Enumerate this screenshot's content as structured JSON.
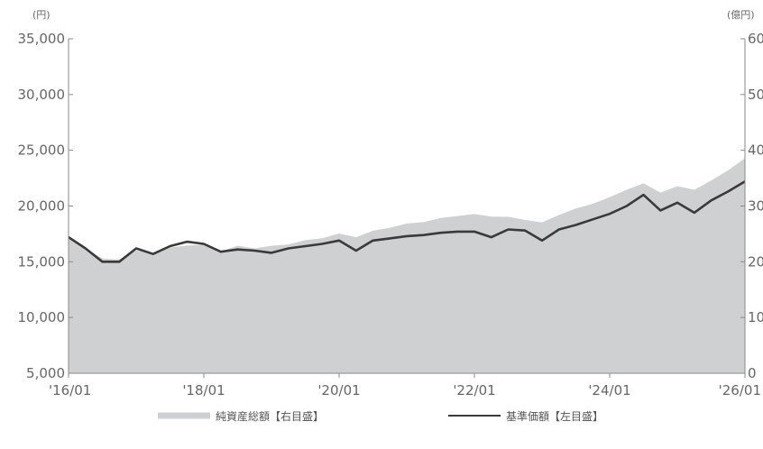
{
  "chart_data": {
    "type": "area+line",
    "title": "",
    "x_labels": [
      "'16/01",
      "'18/01",
      "'20/01",
      "'22/01",
      "'24/01",
      "'26/01"
    ],
    "x_range": [
      "2016-01",
      "2026-01"
    ],
    "left_axis": {
      "unit": "(円)",
      "ylim": [
        5000,
        35000
      ],
      "ticks": [
        "5,000",
        "10,000",
        "15,000",
        "20,000",
        "25,000",
        "30,000",
        "35,000"
      ],
      "tick_values": [
        5000,
        10000,
        15000,
        20000,
        25000,
        30000,
        35000
      ]
    },
    "right_axis": {
      "unit": "(億円)",
      "ylim": [
        0,
        60
      ],
      "ticks": [
        "0",
        "10",
        "20",
        "30",
        "40",
        "50",
        "60"
      ],
      "tick_values": [
        0,
        10,
        20,
        30,
        40,
        50,
        60
      ]
    },
    "legend": {
      "placement": "bottom",
      "entries": [
        "純資産総額【右目盛】",
        "基準価額【左目盛】"
      ]
    },
    "colors": {
      "area": "#cfd0d2",
      "line": "#3a3a3a",
      "axis": "#8a8a8a",
      "text": "#666666"
    },
    "series": [
      {
        "name": "純資産総額【右目盛】",
        "axis": "right",
        "kind": "area",
        "x": [
          "2016-01",
          "2016-04",
          "2016-07",
          "2016-10",
          "2017-01",
          "2017-04",
          "2017-07",
          "2017-10",
          "2018-01",
          "2018-04",
          "2018-07",
          "2018-10",
          "2019-01",
          "2019-04",
          "2019-07",
          "2019-10",
          "2020-01",
          "2020-04",
          "2020-07",
          "2020-10",
          "2021-01",
          "2021-04",
          "2021-07",
          "2021-10",
          "2022-01",
          "2022-04",
          "2022-07",
          "2022-10",
          "2023-01",
          "2023-04",
          "2023-07",
          "2023-10",
          "2024-01",
          "2024-04",
          "2024-07",
          "2024-10",
          "2025-01",
          "2025-04",
          "2025-07",
          "2025-10",
          "2026-01"
        ],
        "values": [
          24.5,
          22.5,
          20.5,
          20.5,
          22.0,
          21.5,
          22.5,
          23.0,
          23.0,
          22.0,
          22.8,
          22.5,
          22.8,
          23.2,
          23.8,
          24.3,
          25.0,
          24.5,
          25.5,
          26.2,
          26.8,
          27.2,
          27.8,
          28.3,
          28.5,
          28.2,
          28.0,
          27.6,
          27.0,
          28.5,
          29.5,
          30.5,
          31.5,
          33.0,
          34.0,
          32.5,
          33.5,
          33.0,
          34.5,
          36.5,
          38.5
        ]
      },
      {
        "name": "基準価額【左目盛】",
        "axis": "left",
        "kind": "line",
        "x": [
          "2016-01",
          "2016-04",
          "2016-07",
          "2016-10",
          "2017-01",
          "2017-04",
          "2017-07",
          "2017-10",
          "2018-01",
          "2018-04",
          "2018-07",
          "2018-10",
          "2019-01",
          "2019-04",
          "2019-07",
          "2019-10",
          "2020-01",
          "2020-04",
          "2020-07",
          "2020-10",
          "2021-01",
          "2021-04",
          "2021-07",
          "2021-10",
          "2022-01",
          "2022-04",
          "2022-07",
          "2022-10",
          "2023-01",
          "2023-04",
          "2023-07",
          "2023-10",
          "2024-01",
          "2024-04",
          "2024-07",
          "2024-10",
          "2025-01",
          "2025-04",
          "2025-07",
          "2025-10",
          "2026-01"
        ],
        "values": [
          17200,
          16200,
          15000,
          15000,
          16200,
          15700,
          16400,
          16800,
          16600,
          15900,
          16100,
          16000,
          15800,
          16200,
          16400,
          16600,
          16900,
          16000,
          16900,
          17100,
          17300,
          17400,
          17600,
          17700,
          17700,
          17200,
          17900,
          17800,
          16900,
          17900,
          18300,
          18800,
          19300,
          20000,
          21000,
          19600,
          20300,
          19400,
          20500,
          21300,
          22200
        ]
      }
    ]
  }
}
